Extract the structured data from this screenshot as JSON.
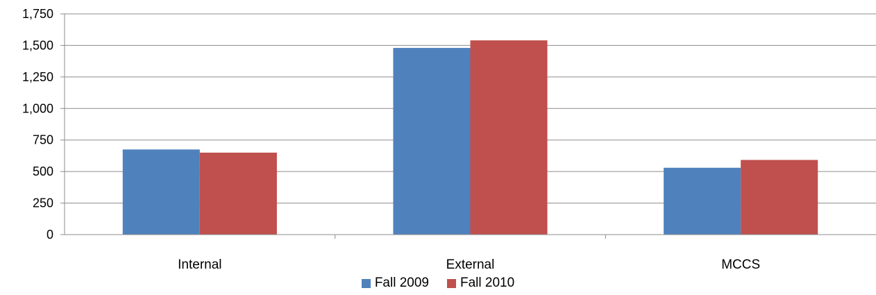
{
  "chart_data": {
    "type": "bar",
    "title": "",
    "xlabel": "",
    "ylabel": "",
    "categories": [
      "Internal",
      "External",
      "MCCS"
    ],
    "series": [
      {
        "name": "Fall 2009",
        "color": "#4F81BD",
        "values": [
          675,
          1480,
          530
        ]
      },
      {
        "name": "Fall 2010",
        "color": "#C0504D",
        "values": [
          650,
          1540,
          592
        ]
      }
    ],
    "ylim": [
      0,
      1750
    ],
    "yticks": [
      0,
      250,
      500,
      750,
      1000,
      1250,
      1500,
      1750
    ],
    "ytick_labels": [
      "0",
      "250",
      "500",
      "750",
      "1,000",
      "1,250",
      "1,500",
      "1,750"
    ],
    "grid": true,
    "legend_position": "bottom"
  }
}
